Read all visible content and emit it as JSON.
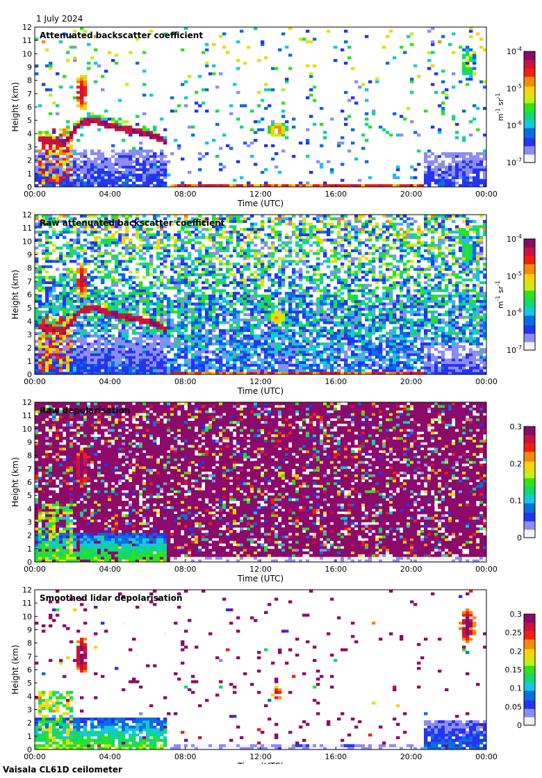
{
  "date_label": "1 July 2024",
  "footer": "Vaisala CL61D ceilometer",
  "colors": {
    "cmap": [
      "#f4f4fc",
      "#8c8cf4",
      "#2434f0",
      "#0a6ce0",
      "#11c8e0",
      "#13d86a",
      "#2ee21c",
      "#c9ec12",
      "#f6d40c",
      "#f68a0c",
      "#f2200e",
      "#c8143c",
      "#8c0a6a"
    ],
    "surface_grey": "#d8d8d8"
  },
  "chart_data": [
    {
      "type": "heatmap",
      "title": "Attenuated backscatter coefficient",
      "xlabel": "Time (UTC)",
      "ylabel": "Height (km)",
      "x_ticks": [
        "00:00",
        "04:00",
        "08:00",
        "12:00",
        "16:00",
        "20:00",
        "00:00"
      ],
      "xlim_hours": [
        0,
        24
      ],
      "ylim": [
        0,
        12
      ],
      "y_ticks": [
        "0",
        "1",
        "2",
        "3",
        "4",
        "5",
        "6",
        "7",
        "8",
        "9",
        "10",
        "11",
        "12"
      ],
      "colorbar": {
        "scale": "log",
        "range": [
          1e-07,
          0.0001
        ],
        "ticks": [
          {
            "value": 0.0001,
            "base": "10",
            "exp": "-4"
          },
          {
            "value": 1e-05,
            "base": "10",
            "exp": "-5"
          },
          {
            "value": 1e-06,
            "base": "10",
            "exp": "-6"
          },
          {
            "value": 1e-07,
            "base": "10",
            "exp": "-7"
          }
        ],
        "unit": {
          "a": "m",
          "a_exp": "-1",
          "b": "sr",
          "b_exp": "-1"
        }
      },
      "style": {
        "noise": 0.06,
        "noise_high": 0.05
      },
      "features": [
        {
          "kind": "cloud_base_line",
          "t": [
            0.2,
            1.6,
            2.4,
            3.2,
            4.0,
            5.0,
            6.2,
            7.0
          ],
          "h": [
            3.6,
            3.3,
            4.8,
            5.0,
            4.6,
            4.3,
            3.9,
            3.4
          ],
          "level": 0.85
        },
        {
          "kind": "lower_cloud",
          "t_range": [
            0.1,
            2.0
          ],
          "h_range": [
            0.3,
            4.3
          ],
          "level": 0.55
        },
        {
          "kind": "boundary_layer",
          "t_range": [
            0,
            7.1
          ],
          "h_range": [
            0,
            2.8
          ],
          "level": 0.18
        },
        {
          "kind": "cloud_blob",
          "t": 2.5,
          "h": 7.1,
          "rt": 0.35,
          "rh": 1.4,
          "level": 0.9
        },
        {
          "kind": "cloud_blob",
          "t": 12.9,
          "h": 4.3,
          "rt": 0.5,
          "rh": 0.6,
          "level": 0.75
        },
        {
          "kind": "cloud_blob",
          "t": 23.0,
          "h": 9.3,
          "rt": 0.4,
          "rh": 1.3,
          "level": 0.55
        },
        {
          "kind": "surface_band",
          "t_range": [
            7.2,
            20.6
          ],
          "h_top": 0.3,
          "level": 0.9
        },
        {
          "kind": "boundary_layer",
          "t_range": [
            20.6,
            24
          ],
          "h_range": [
            0,
            2.5
          ],
          "level": 0.18
        }
      ]
    },
    {
      "type": "heatmap",
      "title": "Raw attenuated backscatter coefficient",
      "xlabel": "Time (UTC)",
      "ylabel": "Height (km)",
      "x_ticks": [
        "00:00",
        "04:00",
        "08:00",
        "12:00",
        "16:00",
        "20:00",
        "00:00"
      ],
      "xlim_hours": [
        0,
        24
      ],
      "ylim": [
        0,
        12
      ],
      "y_ticks": [
        "0",
        "1",
        "2",
        "3",
        "4",
        "5",
        "6",
        "7",
        "8",
        "9",
        "10",
        "11",
        "12"
      ],
      "colorbar": {
        "scale": "log",
        "range": [
          1e-07,
          0.0001
        ],
        "ticks": [
          {
            "value": 0.0001,
            "base": "10",
            "exp": "-4"
          },
          {
            "value": 1e-05,
            "base": "10",
            "exp": "-5"
          },
          {
            "value": 1e-06,
            "base": "10",
            "exp": "-6"
          },
          {
            "value": 1e-07,
            "base": "10",
            "exp": "-7"
          }
        ],
        "unit": {
          "a": "m",
          "a_exp": "-1",
          "b": "sr",
          "b_exp": "-1"
        }
      },
      "style": {
        "noise": 0.75,
        "noise_high": 0.55
      },
      "features": [
        {
          "kind": "cloud_base_line",
          "t": [
            0.2,
            1.6,
            2.4,
            3.2,
            4.0,
            5.0,
            6.2,
            7.0
          ],
          "h": [
            3.6,
            3.3,
            4.8,
            5.0,
            4.6,
            4.3,
            3.9,
            3.4
          ],
          "level": 0.85
        },
        {
          "kind": "lower_cloud",
          "t_range": [
            0.1,
            2.0
          ],
          "h_range": [
            0.3,
            4.3
          ],
          "level": 0.55
        },
        {
          "kind": "boundary_layer",
          "t_range": [
            0,
            7.1
          ],
          "h_range": [
            0,
            2.8
          ],
          "level": 0.18
        },
        {
          "kind": "cloud_blob",
          "t": 2.5,
          "h": 7.1,
          "rt": 0.35,
          "rh": 1.4,
          "level": 0.9
        },
        {
          "kind": "cloud_blob",
          "t": 12.9,
          "h": 4.3,
          "rt": 0.5,
          "rh": 0.6,
          "level": 0.7
        },
        {
          "kind": "cloud_blob",
          "t": 23.0,
          "h": 9.3,
          "rt": 0.4,
          "rh": 1.3,
          "level": 0.5
        },
        {
          "kind": "surface_band",
          "t_range": [
            7.2,
            20.6
          ],
          "h_top": 0.3,
          "level": 0.9
        },
        {
          "kind": "boundary_layer",
          "t_range": [
            20.6,
            24
          ],
          "h_range": [
            0,
            2.3
          ],
          "level": 0.15
        }
      ]
    },
    {
      "type": "heatmap",
      "title": "Raw depolarisation",
      "xlabel": "Time (UTC)",
      "ylabel": "Height (km)",
      "x_ticks": [
        "00:00",
        "04:00",
        "08:00",
        "12:00",
        "16:00",
        "20:00",
        "00:00"
      ],
      "xlim_hours": [
        0,
        24
      ],
      "ylim": [
        0,
        12
      ],
      "y_ticks": [
        "0",
        "1",
        "2",
        "3",
        "4",
        "5",
        "6",
        "7",
        "8",
        "9",
        "10",
        "11",
        "12"
      ],
      "colorbar": {
        "scale": "linear",
        "range": [
          0,
          0.3
        ],
        "ticks": [
          {
            "value": 0.3,
            "text": "0.3"
          },
          {
            "value": 0.2,
            "text": "0.2"
          },
          {
            "value": 0.1,
            "text": "0.1"
          },
          {
            "value": 0,
            "text": "0"
          }
        ],
        "unit": null
      },
      "style": {
        "noise": 0.9,
        "purple_noise": true
      },
      "features": [
        {
          "kind": "lower_cloud",
          "t_range": [
            0.1,
            2.0
          ],
          "h_range": [
            0.3,
            4.3
          ],
          "level": 0.35
        },
        {
          "kind": "boundary_layer",
          "t_range": [
            0,
            7.1
          ],
          "h_range": [
            0,
            2.2
          ],
          "level": 0.45
        },
        {
          "kind": "cloud_blob",
          "t": 2.5,
          "h": 7.1,
          "rt": 0.35,
          "rh": 1.4,
          "level": 1.0
        },
        {
          "kind": "surface_band",
          "t_range": [
            7.2,
            24
          ],
          "h_top": 0.35,
          "level": 0.12
        }
      ]
    },
    {
      "type": "heatmap",
      "title": "Smoothed lidar depolarisation",
      "xlabel": "Time (UTC)",
      "ylabel": "Height (km)",
      "x_ticks": [
        "00:00",
        "04:00",
        "08:00",
        "12:00",
        "16:00",
        "20:00",
        "00:00"
      ],
      "xlim_hours": [
        0,
        24
      ],
      "ylim": [
        0,
        12
      ],
      "y_ticks": [
        "0",
        "1",
        "2",
        "3",
        "4",
        "5",
        "6",
        "7",
        "8",
        "9",
        "10",
        "11",
        "12"
      ],
      "colorbar": {
        "scale": "linear",
        "range": [
          0,
          0.3
        ],
        "ticks": [
          {
            "value": 0.3,
            "text": "0.3"
          },
          {
            "value": 0.25,
            "text": "0.25"
          },
          {
            "value": 0.2,
            "text": "0.2"
          },
          {
            "value": 0.15,
            "text": "0.15"
          },
          {
            "value": 0.1,
            "text": "0.1"
          },
          {
            "value": 0.05,
            "text": "0.05"
          },
          {
            "value": 0,
            "text": "0"
          }
        ],
        "unit": null
      },
      "style": {
        "noise": 0.03,
        "purple_noise": true
      },
      "features": [
        {
          "kind": "lower_cloud",
          "t_range": [
            0.1,
            2.0
          ],
          "h_range": [
            0.3,
            4.3
          ],
          "level": 0.35
        },
        {
          "kind": "boundary_layer",
          "t_range": [
            0,
            7.1
          ],
          "h_range": [
            0,
            2.4
          ],
          "level": 0.45
        },
        {
          "kind": "cloud_blob",
          "t": 2.5,
          "h": 7.1,
          "rt": 0.35,
          "rh": 1.4,
          "level": 1.0
        },
        {
          "kind": "cloud_blob",
          "t": 12.9,
          "h": 4.2,
          "rt": 0.3,
          "rh": 0.5,
          "level": 0.9
        },
        {
          "kind": "cloud_blob",
          "t": 23.0,
          "h": 9.3,
          "rt": 0.4,
          "rh": 1.3,
          "level": 1.0
        },
        {
          "kind": "surface_band",
          "t_range": [
            7.2,
            20.6
          ],
          "h_top": 0.45,
          "level": 0.18
        },
        {
          "kind": "boundary_layer",
          "t_range": [
            20.6,
            24
          ],
          "h_range": [
            0,
            2.3
          ],
          "level": 0.22
        }
      ]
    }
  ]
}
